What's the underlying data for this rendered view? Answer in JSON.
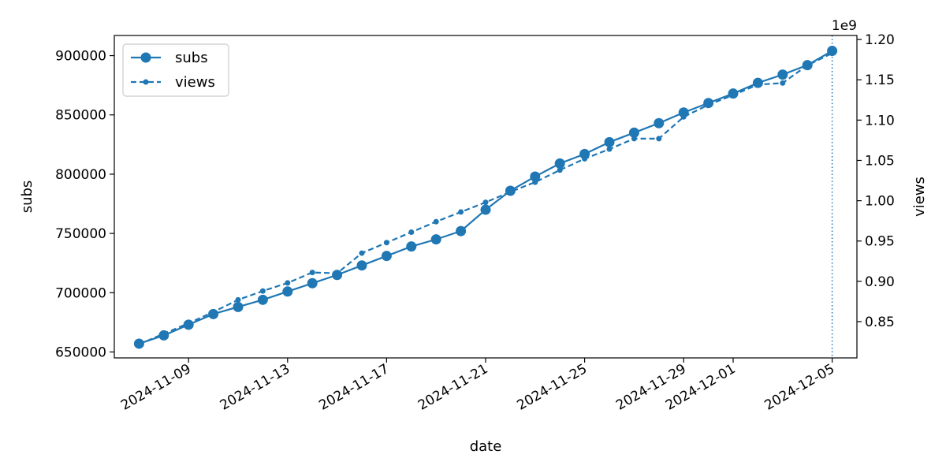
{
  "chart_data": {
    "type": "line",
    "title": "",
    "xlabel": "date",
    "ylabel_left": "subs",
    "ylabel_right": "views",
    "right_axis_multiplier_label": "1e9",
    "x": [
      "2024-11-07",
      "2024-11-08",
      "2024-11-09",
      "2024-11-10",
      "2024-11-11",
      "2024-11-12",
      "2024-11-13",
      "2024-11-14",
      "2024-11-15",
      "2024-11-16",
      "2024-11-17",
      "2024-11-18",
      "2024-11-19",
      "2024-11-20",
      "2024-11-21",
      "2024-11-22",
      "2024-11-23",
      "2024-11-24",
      "2024-11-25",
      "2024-11-26",
      "2024-11-27",
      "2024-11-28",
      "2024-11-29",
      "2024-11-30",
      "2024-12-01",
      "2024-12-02",
      "2024-12-03",
      "2024-12-04",
      "2024-12-05"
    ],
    "xlim": [
      "2024-11-06",
      "2024-12-06"
    ],
    "x_ticks": [
      "2024-11-09",
      "2024-11-13",
      "2024-11-17",
      "2024-11-21",
      "2024-11-25",
      "2024-11-29",
      "2024-12-01",
      "2024-12-05"
    ],
    "series": [
      {
        "name": "subs",
        "axis": "left",
        "style": "solid",
        "marker": "circle",
        "color": "#1f77b4",
        "values": [
          657000,
          664000,
          673000,
          682000,
          688000,
          694000,
          701000,
          708000,
          715000,
          723000,
          731000,
          739000,
          745000,
          752000,
          770000,
          786000,
          798000,
          809000,
          817000,
          827000,
          835000,
          843000,
          852000,
          860000,
          868000,
          877000,
          884000,
          892000,
          904000
        ]
      },
      {
        "name": "views",
        "axis": "right",
        "style": "dashed",
        "marker": "small-circle",
        "color": "#1f77b4",
        "values": [
          822000000.0,
          835000000.0,
          848000000.0,
          862000000.0,
          877000000.0,
          888000000.0,
          898000000.0,
          911000000.0,
          910000000.0,
          935000000.0,
          948000000.0,
          961000000.0,
          974000000.0,
          986000000.0,
          998000000.0,
          1011000000.0,
          1023000000.0,
          1038000000.0,
          1052000000.0,
          1064000000.0,
          1077000000.0,
          1077000000.0,
          1104000000.0,
          1119000000.0,
          1131000000.0,
          1144000000.0,
          1146000000.0,
          1168000000.0,
          1183000000.0
        ]
      }
    ],
    "ylim_left": [
      645000,
      917000
    ],
    "yticks_left": [
      650000,
      700000,
      750000,
      800000,
      850000,
      900000
    ],
    "ylim_right": [
      805000000.0,
      1205000000.0
    ],
    "yticks_right": [
      850000000.0,
      900000000.0,
      950000000.0,
      1000000000.0,
      1050000000.0,
      1100000000.0,
      1150000000.0,
      1200000000.0
    ],
    "yticks_right_labels": [
      "0.85",
      "0.90",
      "0.95",
      "1.00",
      "1.05",
      "1.10",
      "1.15",
      "1.20"
    ],
    "vertical_marker": {
      "x": "2024-12-05",
      "style": "dotted"
    },
    "grid": false,
    "legend": {
      "position": "top-left",
      "entries": [
        "subs",
        "views"
      ]
    }
  }
}
